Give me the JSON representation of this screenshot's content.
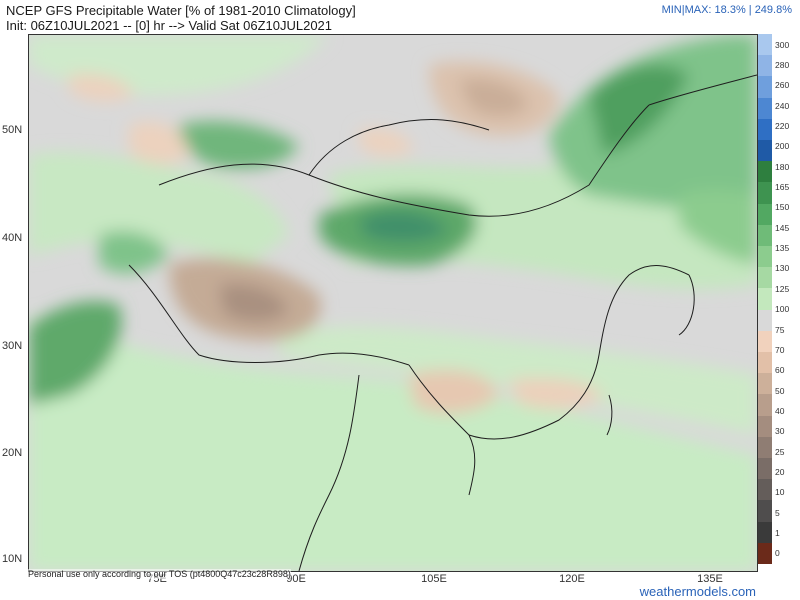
{
  "header": {
    "title": "NCEP GFS Precipitable Water [% of 1981-2010 Climatology]",
    "subtitle": "Init: 06Z10JUL2021 -- [0] hr --> Valid Sat 06Z10JUL2021",
    "minmax": "MIN|MAX: 18.3% | 249.8%"
  },
  "map": {
    "lat_labels": [
      "50N",
      "40N",
      "30N",
      "20N",
      "10N"
    ],
    "lon_labels": [
      "75E",
      "90E",
      "105E",
      "120E",
      "135E"
    ]
  },
  "colorbar": {
    "labels": [
      "300",
      "280",
      "260",
      "240",
      "220",
      "200",
      "180",
      "165",
      "150",
      "145",
      "135",
      "130",
      "125",
      "100",
      "75",
      "70",
      "60",
      "50",
      "40",
      "30",
      "25",
      "20",
      "10",
      "5",
      "1",
      "0"
    ],
    "colors": [
      "#a9c8ee",
      "#8fb4e6",
      "#6f9fdd",
      "#4d87d2",
      "#2f6fc4",
      "#1f5aa6",
      "#2e7f3f",
      "#3e9350",
      "#52a862",
      "#6fbb78",
      "#8ccc8e",
      "#a6d9a3",
      "#c3e8bd",
      "#d9d9d9",
      "#f1d2bd",
      "#e2c0a8",
      "#cdb09a",
      "#b89e8c",
      "#a48d7f",
      "#8f7d73",
      "#7a6d67",
      "#645d5a",
      "#4f4d4d",
      "#3a3a3a",
      "#6b2a1a"
    ]
  },
  "footer": {
    "note": "Personal use only according to our TOS (pt4800Q47c23c28R898)",
    "site": "weathermodels.com"
  }
}
